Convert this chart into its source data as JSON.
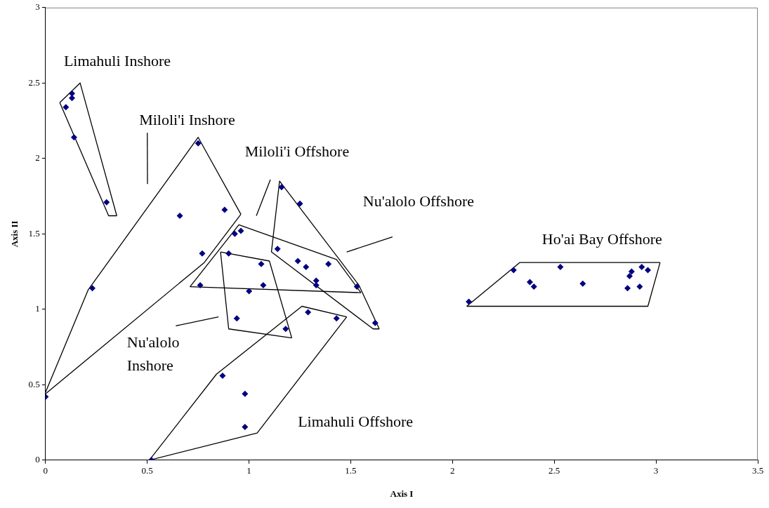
{
  "chart_data": {
    "type": "scatter",
    "xlabel": "Axis I",
    "ylabel": "Axis II",
    "xlim": [
      0,
      3.5
    ],
    "ylim": [
      0,
      3
    ],
    "xticks": [
      0,
      0.5,
      1,
      1.5,
      2,
      2.5,
      3,
      3.5
    ],
    "yticks": [
      0,
      0.5,
      1,
      1.5,
      2,
      2.5,
      3
    ],
    "grid": false,
    "legend": false,
    "marker": "diamond",
    "series": [
      {
        "color": "#000080",
        "x": [
          0.13,
          0.13,
          0.1,
          0.14,
          0.3,
          0.75,
          0.66,
          0.88,
          0.77,
          0.23,
          0,
          0.93,
          0.96,
          0.9,
          0.76,
          1.06,
          1.07,
          1.0,
          0.94,
          1.18,
          1.16,
          1.25,
          1.14,
          1.24,
          1.28,
          1.39,
          1.33,
          1.33,
          1.53,
          1.62,
          1.29,
          1.43,
          0.87,
          0.98,
          0.98,
          0.52,
          2.08,
          2.3,
          2.38,
          2.4,
          2.53,
          2.64,
          2.86,
          2.87,
          2.88,
          2.93,
          2.96,
          2.92
        ],
        "values": [
          2.43,
          2.4,
          2.34,
          2.14,
          1.71,
          2.1,
          1.62,
          1.66,
          1.37,
          1.14,
          0.42,
          1.5,
          1.52,
          1.37,
          1.16,
          1.3,
          1.16,
          1.12,
          0.94,
          0.87,
          1.81,
          1.7,
          1.4,
          1.32,
          1.28,
          1.3,
          1.19,
          1.16,
          1.15,
          0.91,
          0.98,
          0.94,
          0.56,
          0.44,
          0.22,
          0,
          1.05,
          1.26,
          1.18,
          1.15,
          1.28,
          1.17,
          1.14,
          1.22,
          1.25,
          1.28,
          1.26,
          1.15
        ]
      },
      {
        "type": "line",
        "marker": "none",
        "color": "#000000",
        "x": [
          0.07,
          0.17,
          0.35
        ],
        "values": [
          2.37,
          2.5,
          1.62
        ]
      },
      {
        "type": "line",
        "marker": "none",
        "color": "#000000",
        "x": [
          0.07,
          0.31,
          0.35
        ],
        "values": [
          2.37,
          1.62,
          1.62
        ]
      },
      {
        "type": "line",
        "marker": "none",
        "color": "#000000",
        "x": [
          0,
          0.21,
          0.75,
          0.96
        ],
        "values": [
          0.45,
          1.13,
          2.14,
          1.63
        ]
      },
      {
        "type": "line",
        "marker": "none",
        "color": "#000000",
        "x": [
          0,
          0.78,
          0.96
        ],
        "values": [
          0.44,
          1.31,
          1.63
        ]
      },
      {
        "type": "line",
        "marker": "none",
        "color": "#000000",
        "x": [
          0.71,
          0.95,
          1.43,
          1.55
        ],
        "values": [
          1.15,
          1.56,
          1.33,
          1.11
        ]
      },
      {
        "type": "line",
        "marker": "none",
        "color": "#000000",
        "x": [
          0.71,
          1.55
        ],
        "values": [
          1.15,
          1.11
        ]
      },
      {
        "type": "line",
        "marker": "none",
        "color": "#000000",
        "x": [
          1.11,
          1.15,
          1.54,
          1.64
        ],
        "values": [
          1.38,
          1.85,
          1.16,
          0.87
        ]
      },
      {
        "type": "line",
        "marker": "none",
        "color": "#000000",
        "x": [
          1.11,
          1.61,
          1.64
        ],
        "values": [
          1.38,
          0.87,
          0.87
        ]
      },
      {
        "type": "line",
        "marker": "none",
        "color": "#000000",
        "x": [
          0.86,
          1.1,
          1.21
        ],
        "values": [
          1.38,
          1.32,
          0.81
        ]
      },
      {
        "type": "line",
        "marker": "none",
        "color": "#000000",
        "x": [
          0.86,
          0.9,
          1.21
        ],
        "values": [
          1.38,
          0.87,
          0.81
        ]
      },
      {
        "type": "line",
        "marker": "none",
        "color": "#000000",
        "x": [
          0.51,
          0.84,
          1.26,
          1.48
        ],
        "values": [
          0,
          0.57,
          1.02,
          0.95
        ]
      },
      {
        "type": "line",
        "marker": "none",
        "color": "#000000",
        "x": [
          0.51,
          1.04,
          1.48
        ],
        "values": [
          0,
          0.18,
          0.95
        ]
      },
      {
        "type": "line",
        "marker": "none",
        "color": "#000000",
        "x": [
          2.07,
          2.33,
          3.02
        ],
        "values": [
          1.02,
          1.31,
          1.31
        ]
      },
      {
        "type": "line",
        "marker": "none",
        "color": "#000000",
        "x": [
          2.07,
          2.96,
          3.02
        ],
        "values": [
          1.02,
          1.02,
          1.31
        ]
      },
      {
        "type": "line",
        "marker": "none",
        "color": "#000000",
        "x": [
          0.5,
          0.501
        ],
        "values": [
          2.17,
          1.83
        ]
      },
      {
        "type": "line",
        "marker": "none",
        "color": "#000000",
        "x": [
          1.036,
          1.105
        ],
        "values": [
          1.62,
          1.86
        ]
      },
      {
        "type": "line",
        "marker": "none",
        "color": "#000000",
        "x": [
          1.48,
          1.705
        ],
        "values": [
          1.38,
          1.48
        ]
      },
      {
        "type": "line",
        "marker": "none",
        "color": "#000000",
        "x": [
          0.64,
          0.85
        ],
        "values": [
          0.89,
          0.95
        ]
      }
    ],
    "annotations": [
      "Limahuli Inshore",
      "Miloli'i Inshore",
      "Miloli'i Offshore",
      "Nu'alolo Offshore",
      "Ho'ai Bay Offshore",
      "Nu'alolo\nInshore",
      "Limahuli Offshore"
    ]
  }
}
